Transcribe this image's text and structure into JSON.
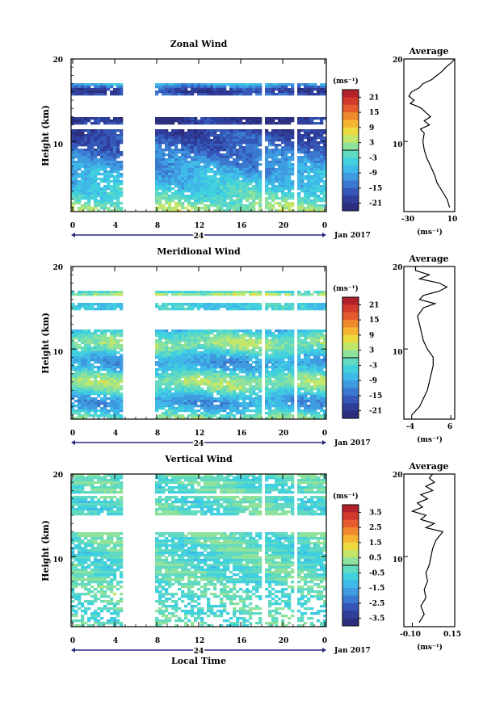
{
  "x_axis_label": "Local Time",
  "date_label": "Jan 2017",
  "day_label": "24",
  "time_ticks": [
    "0",
    "4",
    "8",
    "12",
    "16",
    "20",
    "0"
  ],
  "colorbar_unit": "(ms⁻¹)",
  "average_title": "Average",
  "height_ticks": [
    "20",
    "10"
  ],
  "height_label": "Height (km)",
  "chart_data": [
    {
      "type": "heatmap",
      "title": "Zonal Wind",
      "ylabel": "Height (km)",
      "xlabel": "Local Time",
      "xlim": [
        0,
        24
      ],
      "ylim": [
        1.5,
        20
      ],
      "colorbar_label": "(ms⁻¹)",
      "colorbar_range": [
        -24,
        24
      ],
      "colorbar_ticks": [
        "21",
        "15",
        "9",
        "3",
        "-3",
        "-9",
        "-15",
        "-21"
      ],
      "data_gaps_hours": [
        [
          4.5,
          7.8
        ],
        [
          17.7,
          18.0
        ],
        [
          21.0,
          21.3
        ]
      ],
      "profile": {
        "title": "Average",
        "xlim": [
          -30,
          10
        ],
        "xticks": [
          "-30",
          "10"
        ],
        "xlabel": "(ms⁻¹)",
        "height_km": [
          2,
          3,
          4,
          5,
          6,
          7,
          8,
          9,
          10,
          11,
          11.5,
          12,
          12.5,
          13,
          13.4,
          14,
          14.3,
          14.6,
          15,
          15.5,
          16,
          16.5,
          17,
          17.5,
          18,
          18.5,
          19,
          19.5,
          20
        ],
        "values": [
          6,
          4,
          0,
          -4,
          -6,
          -9,
          -12,
          -14,
          -15,
          -14,
          -17,
          -10,
          -14,
          -9,
          -12,
          -16,
          -20,
          -25,
          -22,
          -26,
          -24,
          -18,
          -15,
          -8,
          -4,
          0,
          3,
          7,
          10
        ]
      }
    },
    {
      "type": "heatmap",
      "title": "Meridional Wind",
      "ylabel": "Height (km)",
      "xlabel": "Local Time",
      "xlim": [
        0,
        24
      ],
      "ylim": [
        1.5,
        20
      ],
      "colorbar_label": "(ms⁻¹)",
      "colorbar_range": [
        -24,
        24
      ],
      "colorbar_ticks": [
        "21",
        "15",
        "9",
        "3",
        "-3",
        "-9",
        "-15",
        "-21"
      ],
      "data_gaps_hours": [
        [
          4.5,
          7.8
        ],
        [
          17.7,
          18.0
        ],
        [
          21.0,
          21.3
        ]
      ],
      "profile": {
        "title": "Average",
        "xlim": [
          -6,
          7
        ],
        "xticks": [
          "-4",
          "6"
        ],
        "xlabel": "(ms⁻¹)",
        "height_km": [
          2,
          2.5,
          3,
          4,
          5,
          6,
          7,
          8,
          9,
          10,
          11,
          12,
          13,
          14,
          15,
          15.5,
          16,
          16.5,
          17,
          17.5,
          18,
          18.5,
          19,
          19.5,
          20
        ],
        "values": [
          -4,
          -3,
          -2,
          -1,
          0,
          0.5,
          1,
          1.5,
          1.5,
          0,
          -1,
          -1.5,
          -2,
          -2.5,
          -1,
          2,
          -2,
          -1,
          3,
          5,
          3,
          -2,
          0.5,
          -3,
          -3
        ]
      }
    },
    {
      "type": "heatmap",
      "title": "Vertical Wind",
      "ylabel": "Height (km)",
      "xlabel": "Local Time",
      "xlim": [
        0,
        24
      ],
      "ylim": [
        1.5,
        20
      ],
      "colorbar_label": "(ms⁻¹)",
      "colorbar_range": [
        -4,
        4
      ],
      "colorbar_ticks": [
        "3.5",
        "2.5",
        "1.5",
        "0.5",
        "-0.5",
        "-1.5",
        "-2.5",
        "-3.5"
      ],
      "data_gaps_hours": [
        [
          4.5,
          7.8
        ],
        [
          17.7,
          18.0
        ],
        [
          21.0,
          21.3
        ]
      ],
      "profile": {
        "title": "Average",
        "xlim": [
          -0.15,
          0.15
        ],
        "xticks": [
          "-0.10",
          "0.15"
        ],
        "xlabel": "(ms⁻¹)",
        "height_km": [
          2,
          3,
          4,
          5,
          6,
          7,
          8,
          9,
          10,
          11,
          12,
          12.5,
          13,
          13.5,
          14,
          14.5,
          15,
          15.5,
          16,
          16.5,
          17,
          17.5,
          18,
          18.5,
          19,
          19.5,
          20
        ],
        "values": [
          -0.06,
          -0.03,
          -0.05,
          -0.02,
          -0.03,
          -0.01,
          -0.02,
          0.0,
          0.01,
          0.02,
          0.04,
          0.06,
          0.08,
          -0.02,
          0.03,
          -0.05,
          -0.02,
          -0.1,
          -0.04,
          -0.07,
          -0.01,
          -0.05,
          0.02,
          -0.02,
          0.03,
          0.0,
          0.02
        ]
      }
    }
  ]
}
